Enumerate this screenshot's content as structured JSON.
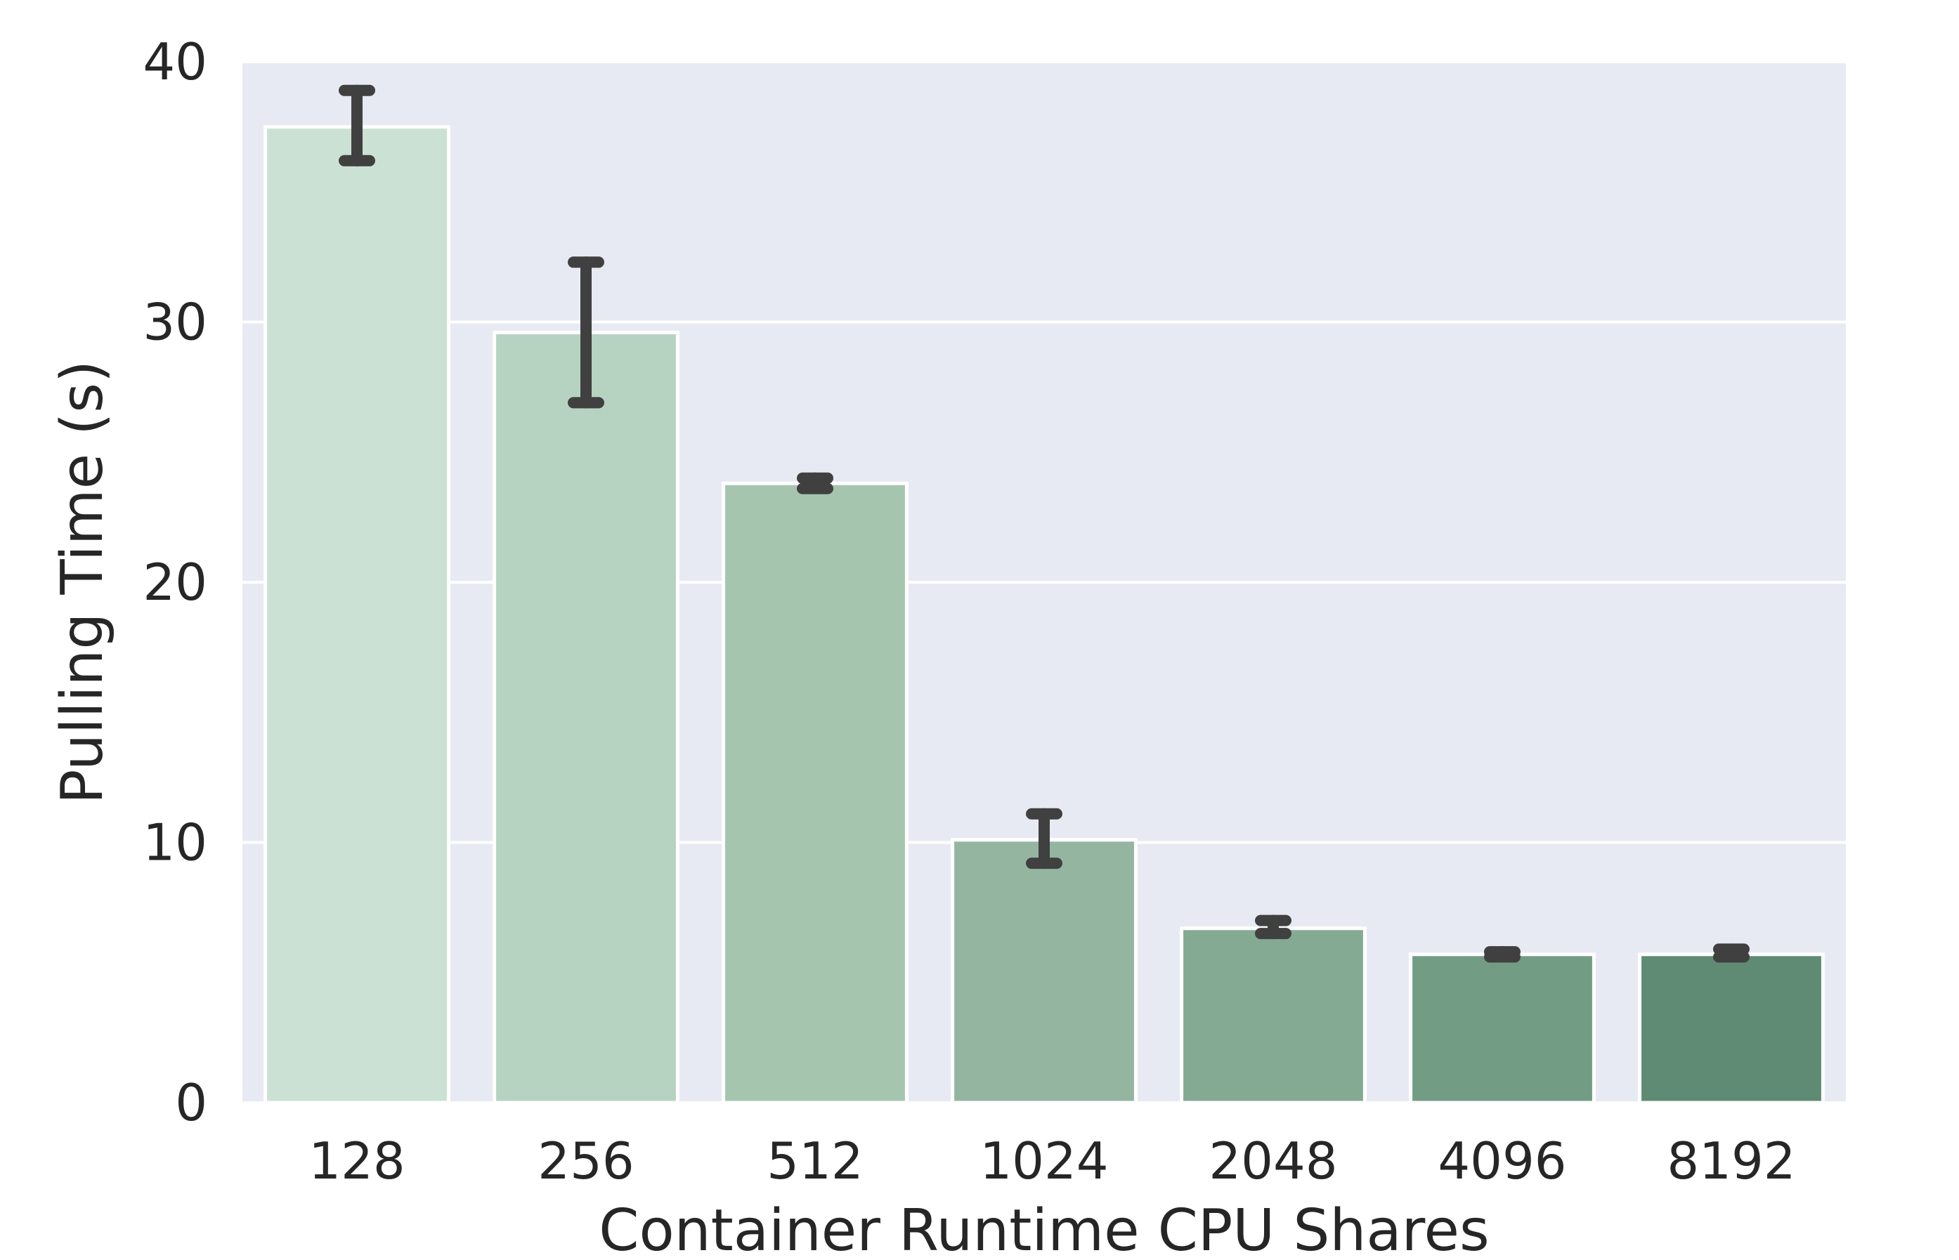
{
  "chart_data": {
    "type": "bar",
    "title": "",
    "xlabel": "Container Runtime CPU Shares",
    "ylabel": "Pulling Time (s)",
    "categories": [
      "128",
      "256",
      "512",
      "1024",
      "2048",
      "4096",
      "8192"
    ],
    "values": [
      37.5,
      29.6,
      23.8,
      10.1,
      6.7,
      5.7,
      5.7
    ],
    "error_low": [
      36.2,
      26.9,
      23.6,
      9.2,
      6.5,
      5.6,
      5.6
    ],
    "error_high": [
      38.9,
      32.3,
      24.0,
      11.1,
      7.0,
      5.8,
      5.9
    ],
    "ylim": [
      0,
      40
    ],
    "yticks": [
      0,
      10,
      20,
      30,
      40
    ],
    "grid": true,
    "colors": [
      "#cbe1d3",
      "#b6d3c2",
      "#a6c5ae",
      "#94b6a0",
      "#85aa93",
      "#739c84",
      "#5f8a73"
    ],
    "background": "#e8eaf3",
    "error_color": "#404040"
  }
}
